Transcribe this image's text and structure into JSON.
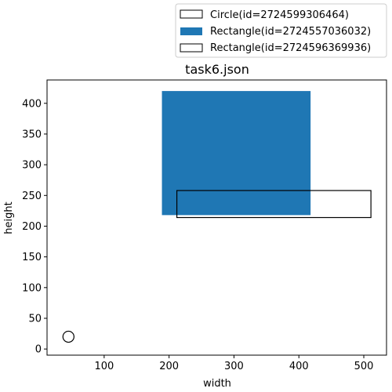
{
  "chart_data": {
    "type": "scatter",
    "title": "task6.json",
    "xlabel": "width",
    "ylabel": "height",
    "xlim": [
      12,
      535
    ],
    "ylim": [
      -10,
      438
    ],
    "xticks": [
      100,
      200,
      300,
      400,
      500
    ],
    "yticks": [
      0,
      50,
      100,
      150,
      200,
      250,
      300,
      350,
      400
    ],
    "grid": false,
    "legend_position": "above-right",
    "series": [
      {
        "name": "Circle(id=2724599306464)",
        "shape": "circle",
        "cx": 45,
        "cy": 20,
        "r": 9,
        "fill": "none",
        "stroke": "#000000"
      },
      {
        "name": "Rectangle(id=2724557036032)",
        "shape": "rectangle",
        "x": [
          189,
          418
        ],
        "y": [
          218,
          420
        ],
        "fill": "#1f77b4",
        "stroke": "none"
      },
      {
        "name": "Rectangle(id=2724596369936)",
        "shape": "rectangle",
        "x": [
          212,
          511
        ],
        "y": [
          214,
          258
        ],
        "fill": "none",
        "stroke": "#000000"
      }
    ]
  }
}
